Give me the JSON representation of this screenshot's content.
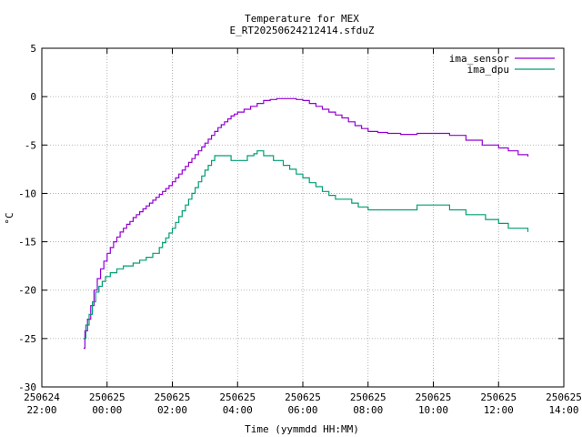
{
  "chart_data": {
    "type": "line",
    "title": "Temperature for MEX",
    "subtitle": "E_RT20250624212414.sfduZ",
    "xlabel": "Time (yymmdd HH:MM)",
    "ylabel": "°C",
    "xlim": [
      -2,
      14
    ],
    "ylim": [
      -30,
      5
    ],
    "grid": true,
    "legend_position": "top-right",
    "x_ticks": [
      {
        "value": -2,
        "date": "250624",
        "time": "22:00"
      },
      {
        "value": 0,
        "date": "250625",
        "time": "00:00"
      },
      {
        "value": 2,
        "date": "250625",
        "time": "02:00"
      },
      {
        "value": 4,
        "date": "250625",
        "time": "04:00"
      },
      {
        "value": 6,
        "date": "250625",
        "time": "06:00"
      },
      {
        "value": 8,
        "date": "250625",
        "time": "08:00"
      },
      {
        "value": 10,
        "date": "250625",
        "time": "10:00"
      },
      {
        "value": 12,
        "date": "250625",
        "time": "12:00"
      },
      {
        "value": 14,
        "date": "250625",
        "time": "14:00"
      }
    ],
    "y_ticks": [
      "5",
      "0",
      "-5",
      "-10",
      "-15",
      "-20",
      "-25",
      "-30"
    ],
    "series": [
      {
        "name": "ima_sensor",
        "color": "#9400d3",
        "points": [
          [
            -0.72,
            -26.0
          ],
          [
            -0.68,
            -24.2
          ],
          [
            -0.6,
            -23.0
          ],
          [
            -0.5,
            -21.6
          ],
          [
            -0.4,
            -20.0
          ],
          [
            -0.3,
            -18.8
          ],
          [
            -0.2,
            -17.8
          ],
          [
            -0.1,
            -17.0
          ],
          [
            0.0,
            -16.2
          ],
          [
            0.1,
            -15.6
          ],
          [
            0.2,
            -15.0
          ],
          [
            0.3,
            -14.5
          ],
          [
            0.4,
            -14.0
          ],
          [
            0.5,
            -13.6
          ],
          [
            0.6,
            -13.2
          ],
          [
            0.7,
            -12.9
          ],
          [
            0.8,
            -12.5
          ],
          [
            0.9,
            -12.2
          ],
          [
            1.0,
            -11.9
          ],
          [
            1.1,
            -11.6
          ],
          [
            1.2,
            -11.3
          ],
          [
            1.3,
            -11.0
          ],
          [
            1.4,
            -10.7
          ],
          [
            1.5,
            -10.4
          ],
          [
            1.6,
            -10.1
          ],
          [
            1.7,
            -9.8
          ],
          [
            1.8,
            -9.5
          ],
          [
            1.9,
            -9.2
          ],
          [
            2.0,
            -8.8
          ],
          [
            2.1,
            -8.4
          ],
          [
            2.2,
            -8.0
          ],
          [
            2.3,
            -7.6
          ],
          [
            2.4,
            -7.2
          ],
          [
            2.5,
            -6.8
          ],
          [
            2.6,
            -6.4
          ],
          [
            2.7,
            -6.0
          ],
          [
            2.8,
            -5.6
          ],
          [
            2.9,
            -5.2
          ],
          [
            3.0,
            -4.8
          ],
          [
            3.1,
            -4.4
          ],
          [
            3.2,
            -4.0
          ],
          [
            3.3,
            -3.6
          ],
          [
            3.4,
            -3.2
          ],
          [
            3.5,
            -2.9
          ],
          [
            3.6,
            -2.6
          ],
          [
            3.7,
            -2.3
          ],
          [
            3.8,
            -2.0
          ],
          [
            3.9,
            -1.8
          ],
          [
            4.0,
            -1.6
          ],
          [
            4.2,
            -1.3
          ],
          [
            4.4,
            -1.0
          ],
          [
            4.6,
            -0.7
          ],
          [
            4.8,
            -0.4
          ],
          [
            5.0,
            -0.3
          ],
          [
            5.2,
            -0.2
          ],
          [
            5.5,
            -0.2
          ],
          [
            5.8,
            -0.3
          ],
          [
            6.0,
            -0.4
          ],
          [
            6.2,
            -0.7
          ],
          [
            6.4,
            -1.0
          ],
          [
            6.6,
            -1.3
          ],
          [
            6.8,
            -1.6
          ],
          [
            7.0,
            -1.9
          ],
          [
            7.2,
            -2.2
          ],
          [
            7.4,
            -2.6
          ],
          [
            7.6,
            -3.0
          ],
          [
            7.8,
            -3.3
          ],
          [
            8.0,
            -3.6
          ],
          [
            8.3,
            -3.7
          ],
          [
            8.6,
            -3.8
          ],
          [
            9.0,
            -3.9
          ],
          [
            9.5,
            -3.8
          ],
          [
            10.0,
            -3.8
          ],
          [
            10.5,
            -4.0
          ],
          [
            11.0,
            -4.5
          ],
          [
            11.5,
            -5.0
          ],
          [
            12.0,
            -5.3
          ],
          [
            12.3,
            -5.6
          ],
          [
            12.6,
            -6.0
          ],
          [
            12.9,
            -6.2
          ]
        ]
      },
      {
        "name": "ima_dpu",
        "color": "#009e73",
        "points": [
          [
            -0.72,
            -25.0
          ],
          [
            -0.65,
            -23.6
          ],
          [
            -0.55,
            -22.5
          ],
          [
            -0.45,
            -21.2
          ],
          [
            -0.35,
            -20.2
          ],
          [
            -0.25,
            -19.6
          ],
          [
            -0.15,
            -19.1
          ],
          [
            -0.05,
            -18.6
          ],
          [
            0.1,
            -18.2
          ],
          [
            0.3,
            -17.8
          ],
          [
            0.5,
            -17.5
          ],
          [
            0.8,
            -17.2
          ],
          [
            1.0,
            -16.9
          ],
          [
            1.2,
            -16.6
          ],
          [
            1.4,
            -16.2
          ],
          [
            1.6,
            -15.6
          ],
          [
            1.7,
            -15.1
          ],
          [
            1.8,
            -14.6
          ],
          [
            1.9,
            -14.1
          ],
          [
            2.0,
            -13.6
          ],
          [
            2.1,
            -13.0
          ],
          [
            2.2,
            -12.4
          ],
          [
            2.3,
            -11.8
          ],
          [
            2.4,
            -11.2
          ],
          [
            2.5,
            -10.6
          ],
          [
            2.6,
            -10.0
          ],
          [
            2.7,
            -9.4
          ],
          [
            2.8,
            -8.8
          ],
          [
            2.9,
            -8.2
          ],
          [
            3.0,
            -7.6
          ],
          [
            3.1,
            -7.1
          ],
          [
            3.2,
            -6.6
          ],
          [
            3.3,
            -6.1
          ],
          [
            3.5,
            -6.1
          ],
          [
            3.7,
            -6.1
          ],
          [
            3.8,
            -6.6
          ],
          [
            4.0,
            -6.6
          ],
          [
            4.2,
            -6.6
          ],
          [
            4.3,
            -6.1
          ],
          [
            4.4,
            -6.1
          ],
          [
            4.5,
            -5.9
          ],
          [
            4.6,
            -5.6
          ],
          [
            4.7,
            -5.6
          ],
          [
            4.8,
            -6.1
          ],
          [
            5.0,
            -6.1
          ],
          [
            5.1,
            -6.6
          ],
          [
            5.3,
            -6.6
          ],
          [
            5.4,
            -7.1
          ],
          [
            5.6,
            -7.5
          ],
          [
            5.8,
            -8.0
          ],
          [
            6.0,
            -8.4
          ],
          [
            6.2,
            -8.9
          ],
          [
            6.4,
            -9.3
          ],
          [
            6.6,
            -9.8
          ],
          [
            6.8,
            -10.2
          ],
          [
            7.0,
            -10.6
          ],
          [
            7.3,
            -10.6
          ],
          [
            7.5,
            -11.0
          ],
          [
            7.7,
            -11.4
          ],
          [
            8.0,
            -11.7
          ],
          [
            8.5,
            -11.7
          ],
          [
            9.0,
            -11.7
          ],
          [
            9.5,
            -11.2
          ],
          [
            10.0,
            -11.2
          ],
          [
            10.4,
            -11.2
          ],
          [
            10.5,
            -11.7
          ],
          [
            10.8,
            -11.7
          ],
          [
            11.0,
            -12.2
          ],
          [
            11.3,
            -12.2
          ],
          [
            11.6,
            -12.7
          ],
          [
            12.0,
            -13.1
          ],
          [
            12.3,
            -13.6
          ],
          [
            12.6,
            -13.6
          ],
          [
            12.8,
            -13.6
          ],
          [
            12.9,
            -14.0
          ]
        ]
      }
    ]
  }
}
